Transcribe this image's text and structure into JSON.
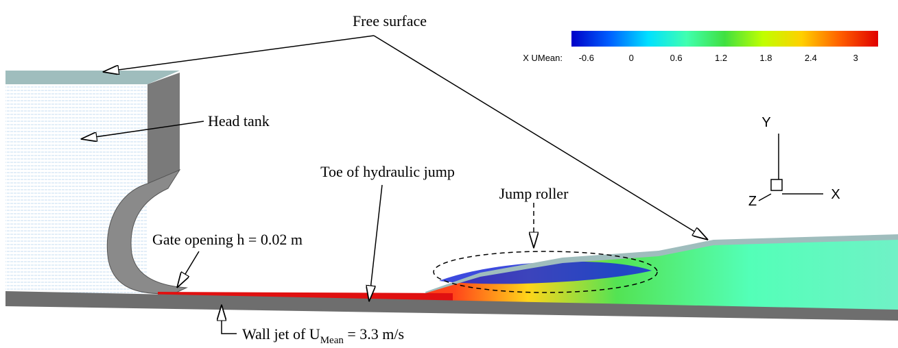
{
  "annotations": {
    "free_surface": "Free surface",
    "head_tank": "Head tank",
    "toe": "Toe of hydraulic jump",
    "jump_roller": "Jump roller",
    "gate_opening": "Gate opening h = 0.02 m",
    "wall_jet": {
      "prefix": "Wall jet of U",
      "subscript": "Mean",
      "suffix": " = 3.3 m/s"
    }
  },
  "colorbar": {
    "label": "X UMean:",
    "range": [
      -0.8,
      3.3
    ],
    "ticks": [
      -0.6,
      0,
      0.6,
      1.2,
      1.8,
      2.4,
      3
    ],
    "colors": [
      "#0000c8",
      "#0060ff",
      "#00e0ff",
      "#40ffb0",
      "#40e040",
      "#c0ff00",
      "#ffd000",
      "#ff6000",
      "#e00000"
    ]
  },
  "axes": {
    "x": "X",
    "y": "Y",
    "z": "Z"
  }
}
